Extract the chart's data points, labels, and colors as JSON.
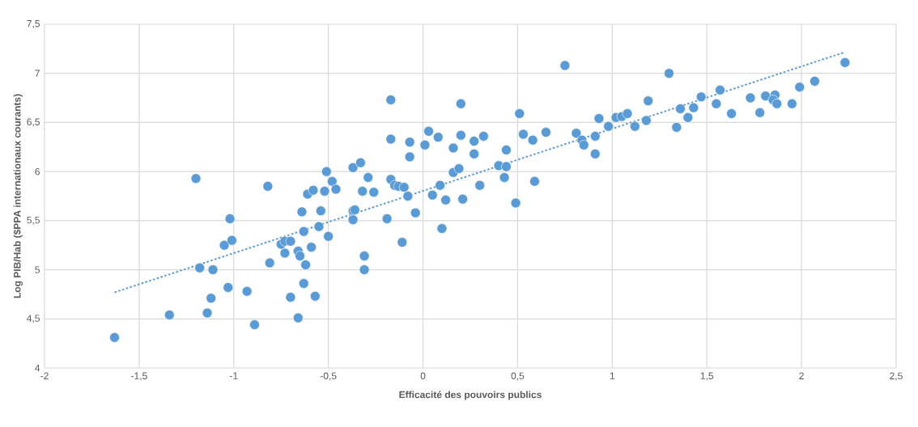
{
  "chart_data": {
    "type": "scatter",
    "xlabel": "Efficacité des pouvoirs publics",
    "ylabel": "Log PIB/Hab ($PPA internationaux courants)",
    "xlim": [
      -2,
      2.5
    ],
    "ylim": [
      4,
      7.5
    ],
    "xticks": [
      {
        "value": -2,
        "label": "-2"
      },
      {
        "value": -1.5,
        "label": "-1,5"
      },
      {
        "value": -1,
        "label": "-1"
      },
      {
        "value": -0.5,
        "label": "-0,5"
      },
      {
        "value": 0,
        "label": "0"
      },
      {
        "value": 0.5,
        "label": "0,5"
      },
      {
        "value": 1,
        "label": "1"
      },
      {
        "value": 1.5,
        "label": "1,5"
      },
      {
        "value": 2,
        "label": "2"
      },
      {
        "value": 2.5,
        "label": "2,5"
      }
    ],
    "yticks": [
      {
        "value": 4,
        "label": "4"
      },
      {
        "value": 4.5,
        "label": "4,5"
      },
      {
        "value": 5,
        "label": "5"
      },
      {
        "value": 5.5,
        "label": "5,5"
      },
      {
        "value": 6,
        "label": "6"
      },
      {
        "value": 6.5,
        "label": "6,5"
      },
      {
        "value": 7,
        "label": "7"
      },
      {
        "value": 7.5,
        "label": "7,5"
      }
    ],
    "grid": true,
    "series": [
      {
        "marker": "circle",
        "color": "#5b9bd5",
        "x": [
          -1.63,
          -1.34,
          -1.2,
          -1.18,
          -1.11,
          -1.14,
          -1.12,
          -1.03,
          -0.93,
          -0.89,
          -1.05,
          -1.01,
          -1.02,
          -0.82,
          -0.81,
          -0.73,
          -0.75,
          -0.73,
          -0.7,
          -0.7,
          -0.66,
          -0.66,
          -0.65,
          -0.62,
          -0.63,
          -0.57,
          -0.59,
          -0.63,
          -0.64,
          -0.55,
          -0.5,
          -0.54,
          -0.61,
          -0.58,
          -0.52,
          -0.51,
          -0.48,
          -0.46,
          -0.37,
          -0.33,
          -0.29,
          -0.32,
          -0.26,
          -0.37,
          -0.36,
          -0.37,
          -0.31,
          -0.31,
          -0.17,
          -0.17,
          -0.17,
          -0.15,
          -0.13,
          -0.1,
          -0.08,
          -0.19,
          -0.11,
          -0.04,
          -0.07,
          -0.07,
          0.01,
          0.03,
          0.08,
          0.16,
          0.2,
          0.2,
          0.27,
          0.32,
          0.27,
          0.16,
          0.19,
          0.09,
          0.05,
          0.12,
          0.21,
          0.1,
          0.3,
          0.4,
          0.44,
          0.43,
          0.44,
          0.51,
          0.53,
          0.58,
          0.65,
          0.59,
          0.49,
          0.75,
          0.81,
          0.84,
          0.85,
          0.91,
          0.91,
          0.93,
          0.98,
          1.02,
          1.05,
          1.08,
          1.12,
          1.18,
          1.19,
          1.3,
          1.34,
          1.36,
          1.4,
          1.43,
          1.47,
          1.55,
          1.57,
          1.63,
          1.73,
          1.78,
          1.81,
          1.86,
          1.85,
          1.87,
          1.95,
          1.99,
          2.07,
          2.23
        ],
        "values": [
          4.31,
          4.54,
          5.93,
          5.02,
          5.0,
          4.56,
          4.71,
          4.82,
          4.78,
          4.44,
          5.25,
          5.3,
          5.52,
          5.85,
          5.07,
          5.17,
          5.26,
          5.29,
          5.29,
          4.72,
          4.51,
          5.19,
          5.14,
          5.05,
          4.86,
          4.73,
          5.23,
          5.39,
          5.59,
          5.44,
          5.34,
          5.6,
          5.77,
          5.81,
          5.8,
          6.0,
          5.9,
          5.82,
          6.04,
          6.09,
          5.94,
          5.8,
          5.79,
          5.6,
          5.61,
          5.51,
          5.14,
          5.0,
          6.73,
          6.33,
          5.92,
          5.86,
          5.85,
          5.84,
          5.75,
          5.52,
          5.28,
          5.58,
          6.3,
          6.15,
          6.27,
          6.41,
          6.35,
          6.24,
          6.69,
          6.37,
          6.31,
          6.36,
          6.18,
          5.99,
          6.03,
          5.86,
          5.76,
          5.71,
          5.72,
          5.42,
          5.86,
          6.06,
          6.05,
          5.94,
          6.22,
          6.59,
          6.38,
          6.32,
          6.4,
          5.9,
          5.68,
          7.08,
          6.39,
          6.32,
          6.27,
          6.18,
          6.36,
          6.54,
          6.46,
          6.55,
          6.56,
          6.59,
          6.46,
          6.52,
          6.72,
          7.0,
          6.45,
          6.64,
          6.55,
          6.65,
          6.76,
          6.69,
          6.83,
          6.59,
          6.75,
          6.6,
          6.77,
          6.78,
          6.73,
          6.69,
          6.69,
          6.86,
          6.92,
          7.11
        ]
      },
      {
        "type": "line",
        "marker": "none",
        "line_style": "dotted",
        "color": "#5b9bd5",
        "x": [
          -1.63,
          2.22
        ],
        "values": [
          4.77,
          7.21
        ]
      }
    ]
  }
}
